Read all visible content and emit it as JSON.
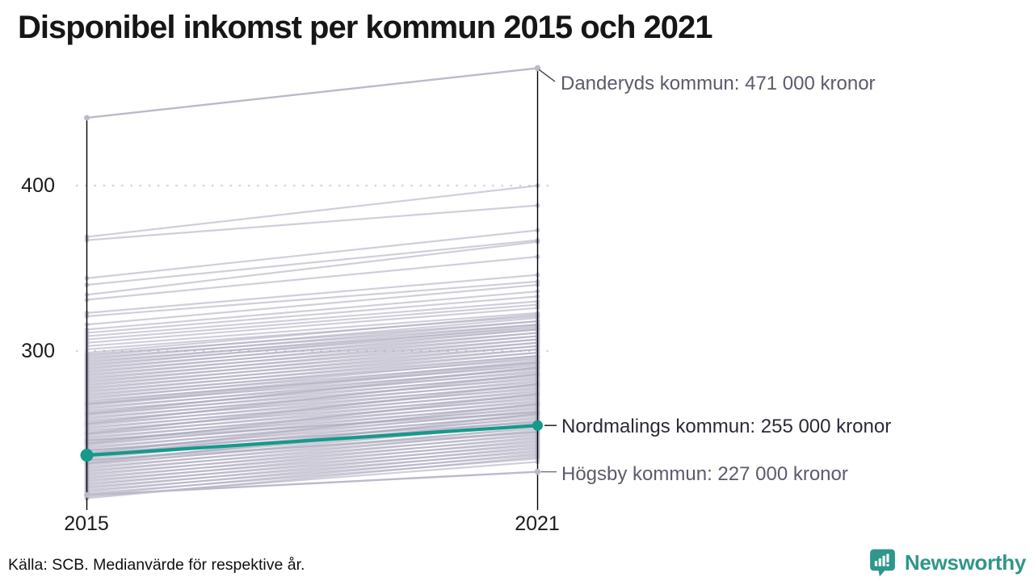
{
  "title": "Disponibel inkomst per kommun 2015 och 2021",
  "footer": {
    "source": "Källa: SCB. Medianvärde för respektive år.",
    "brand_name": "Newsworthy",
    "brand_color": "#2f968b"
  },
  "chart_data": {
    "type": "line",
    "variant": "slope-chart",
    "x_categories": [
      "2015",
      "2021"
    ],
    "y_ticks": [
      {
        "label": "300",
        "value": 300
      },
      {
        "label": "400",
        "value": 400
      }
    ],
    "y_unit": "tusen kronor",
    "ylim": [
      205,
      480
    ],
    "grid": "dotted-horizontal",
    "line_color": "#a9a6bb",
    "axis_color": "#000000",
    "grid_color": "#d8d8dc",
    "highlighted": {
      "name": "Nordmalings kommun",
      "values": [
        237,
        255
      ],
      "color": "#149a8a",
      "label": "Nordmalings kommun: 255 000 kronor",
      "label_color": "#2b2b37"
    },
    "annotations": [
      {
        "name": "Danderyds kommun",
        "label": "Danderyds kommun: 471 000 kronor",
        "values": [
          441,
          471
        ],
        "label_color": "#5b5b6d",
        "connector_color": "#3b3b45"
      },
      {
        "name": "Nordmalings kommun",
        "label": "Nordmalings kommun: 255 000 kronor",
        "values": [
          237,
          255
        ],
        "label_color": "#2b2b37",
        "connector_color": "#2b2b37"
      },
      {
        "name": "Högsby kommun",
        "label": "Högsby kommun: 227 000 kronor",
        "values": [
          213,
          227
        ],
        "label_color": "#5b5b6d",
        "connector_color": "#73737f"
      }
    ],
    "background_series": [
      [
        369,
        400
      ],
      [
        367,
        388
      ],
      [
        344,
        373
      ],
      [
        340,
        367
      ],
      [
        334,
        366
      ],
      [
        331,
        357
      ],
      [
        323,
        346
      ],
      [
        321,
        342
      ],
      [
        316,
        340
      ],
      [
        313,
        336
      ],
      [
        311,
        333
      ],
      [
        309,
        330
      ],
      [
        307,
        328
      ],
      [
        305,
        326
      ],
      [
        303,
        323
      ],
      [
        301,
        321
      ],
      [
        299,
        322
      ],
      [
        298,
        318
      ],
      [
        297,
        320
      ],
      [
        296,
        316
      ],
      [
        295,
        318
      ],
      [
        294,
        314
      ],
      [
        293,
        316
      ],
      [
        292,
        313
      ],
      [
        291,
        315
      ],
      [
        290,
        311
      ],
      [
        289,
        313
      ],
      [
        288,
        309
      ],
      [
        287,
        311
      ],
      [
        286,
        307
      ],
      [
        285,
        309
      ],
      [
        284,
        305
      ],
      [
        283,
        307
      ],
      [
        282,
        303
      ],
      [
        281,
        305
      ],
      [
        280,
        301
      ],
      [
        279,
        303
      ],
      [
        278,
        299
      ],
      [
        277,
        301
      ],
      [
        276,
        297
      ],
      [
        275,
        299
      ],
      [
        274,
        295
      ],
      [
        273,
        297
      ],
      [
        272,
        293
      ],
      [
        271,
        296
      ],
      [
        270,
        291
      ],
      [
        269,
        294
      ],
      [
        268,
        289
      ],
      [
        267,
        292
      ],
      [
        266,
        287
      ],
      [
        265,
        290
      ],
      [
        264,
        285
      ],
      [
        263,
        288
      ],
      [
        262,
        283
      ],
      [
        261,
        286
      ],
      [
        260,
        281
      ],
      [
        259,
        284
      ],
      [
        258,
        279
      ],
      [
        257,
        282
      ],
      [
        256,
        277
      ],
      [
        255,
        280
      ],
      [
        254,
        275
      ],
      [
        253,
        278
      ],
      [
        252,
        273
      ],
      [
        251,
        276
      ],
      [
        250,
        271
      ],
      [
        249,
        274
      ],
      [
        248,
        269
      ],
      [
        247,
        272
      ],
      [
        246,
        267
      ],
      [
        245,
        270
      ],
      [
        244,
        265
      ],
      [
        243,
        268
      ],
      [
        242,
        263
      ],
      [
        241,
        266
      ],
      [
        240,
        261
      ],
      [
        239,
        264
      ],
      [
        238,
        259
      ],
      [
        237,
        262
      ],
      [
        236,
        257
      ],
      [
        235,
        260
      ],
      [
        234,
        255
      ],
      [
        233,
        258
      ],
      [
        232,
        253
      ],
      [
        231,
        256
      ],
      [
        230,
        251
      ],
      [
        229,
        254
      ],
      [
        228,
        249
      ],
      [
        227,
        252
      ],
      [
        226,
        247
      ],
      [
        225,
        250
      ],
      [
        224,
        245
      ],
      [
        223,
        248
      ],
      [
        222,
        243
      ],
      [
        221,
        246
      ],
      [
        220,
        241
      ],
      [
        219,
        244
      ],
      [
        218,
        239
      ],
      [
        217,
        242
      ],
      [
        216,
        237
      ],
      [
        215,
        240
      ],
      [
        214,
        235
      ],
      [
        213,
        238
      ],
      [
        212,
        233
      ],
      [
        211,
        236
      ],
      [
        268,
        293
      ],
      [
        262,
        290
      ],
      [
        256,
        286
      ],
      [
        250,
        280
      ],
      [
        244,
        274
      ],
      [
        238,
        268
      ],
      [
        232,
        262
      ],
      [
        246,
        263
      ],
      [
        240,
        257
      ],
      [
        234,
        251
      ]
    ]
  }
}
